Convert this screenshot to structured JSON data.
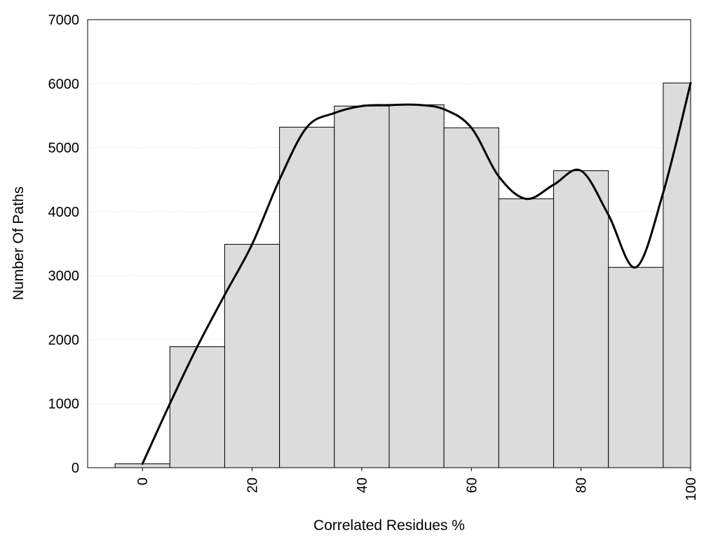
{
  "chart_data": {
    "type": "bar",
    "title": "",
    "xlabel": "Correlated Residues %",
    "ylabel": "Number Of Paths",
    "xlim": [
      -10,
      100
    ],
    "ylim": [
      0,
      7000
    ],
    "grid": true,
    "legend": "none",
    "x_ticks": [
      0,
      20,
      40,
      60,
      80,
      100
    ],
    "x_tick_labels": [
      "0",
      "20",
      "40",
      "60",
      "80",
      "100"
    ],
    "y_ticks": [
      0,
      1000,
      2000,
      3000,
      4000,
      5000,
      6000,
      7000
    ],
    "y_tick_labels": [
      "0",
      "1000",
      "2000",
      "3000",
      "4000",
      "5000",
      "6000",
      "7000"
    ],
    "bin_width": 10,
    "categories": [
      0,
      10,
      20,
      30,
      40,
      50,
      60,
      70,
      80,
      90,
      100
    ],
    "values": [
      60,
      1890,
      3490,
      5320,
      5650,
      5670,
      5310,
      4200,
      4640,
      3130,
      6010
    ],
    "smooth_curve": {
      "x": [
        0,
        5,
        10,
        15,
        20,
        25,
        30,
        35,
        40,
        45,
        50,
        55,
        60,
        65,
        70,
        75,
        80,
        85,
        90,
        95,
        100
      ],
      "y": [
        60,
        1000,
        1890,
        2700,
        3490,
        4500,
        5320,
        5540,
        5650,
        5665,
        5670,
        5600,
        5310,
        4550,
        4200,
        4420,
        4640,
        3950,
        3130,
        4300,
        6010
      ]
    },
    "colors": {
      "bar_fill": "#dcdcdc",
      "bar_edge": "#000000",
      "curve": "#000000"
    }
  }
}
